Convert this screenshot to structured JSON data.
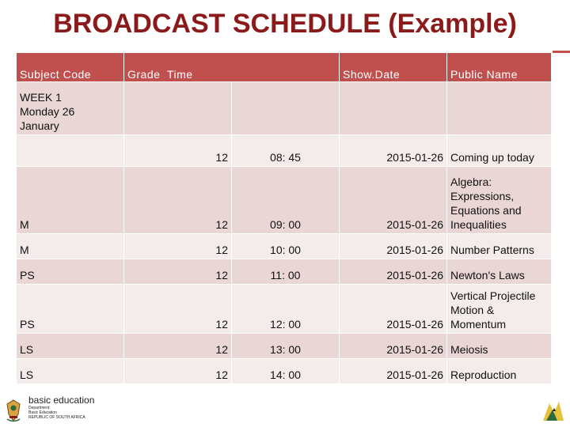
{
  "title": "BROADCAST SCHEDULE (Example)",
  "table": {
    "headers": {
      "subject_code": "Subject Code",
      "grade_time": "Grade  Time",
      "show_date": "Show.Date",
      "public_name": "Public Name"
    },
    "week_label": [
      "WEEK 1",
      "Monday 26",
      "January"
    ],
    "rows": [
      {
        "code": "",
        "grade": "12",
        "time": "08: 45",
        "date": "2015-01-26",
        "name": [
          "Coming up today"
        ]
      },
      {
        "code": "M",
        "grade": "12",
        "time": "09: 00",
        "date": "2015-01-26",
        "name": [
          "Algebra:",
          "Expressions,",
          "Equations and",
          "Inequalities"
        ]
      },
      {
        "code": "M",
        "grade": "12",
        "time": "10: 00",
        "date": "2015-01-26",
        "name": [
          "Number Patterns"
        ]
      },
      {
        "code": "PS",
        "grade": "12",
        "time": "11: 00",
        "date": "2015-01-26",
        "name": [
          "Newton's Laws"
        ]
      },
      {
        "code": "PS",
        "grade": "12",
        "time": "12: 00",
        "date": "2015-01-26",
        "name": [
          "Vertical Projectile",
          "Motion &",
          "Momentum"
        ]
      },
      {
        "code": "LS",
        "grade": "12",
        "time": "13: 00",
        "date": "2015-01-26",
        "name": [
          "Meiosis"
        ]
      },
      {
        "code": "LS",
        "grade": "12",
        "time": "14: 00",
        "date": "2015-01-26",
        "name": [
          "Reproduction"
        ]
      }
    ]
  },
  "footer_logo": {
    "name": "basic education",
    "lines": [
      "Department:",
      "Basic Education",
      "REPUBLIC OF SOUTH AFRICA"
    ]
  },
  "colors": {
    "title": "#8b1a1a",
    "header_bg": "#c0504d",
    "row_odd": "#ead6d5",
    "row_even": "#f4ebeb"
  }
}
